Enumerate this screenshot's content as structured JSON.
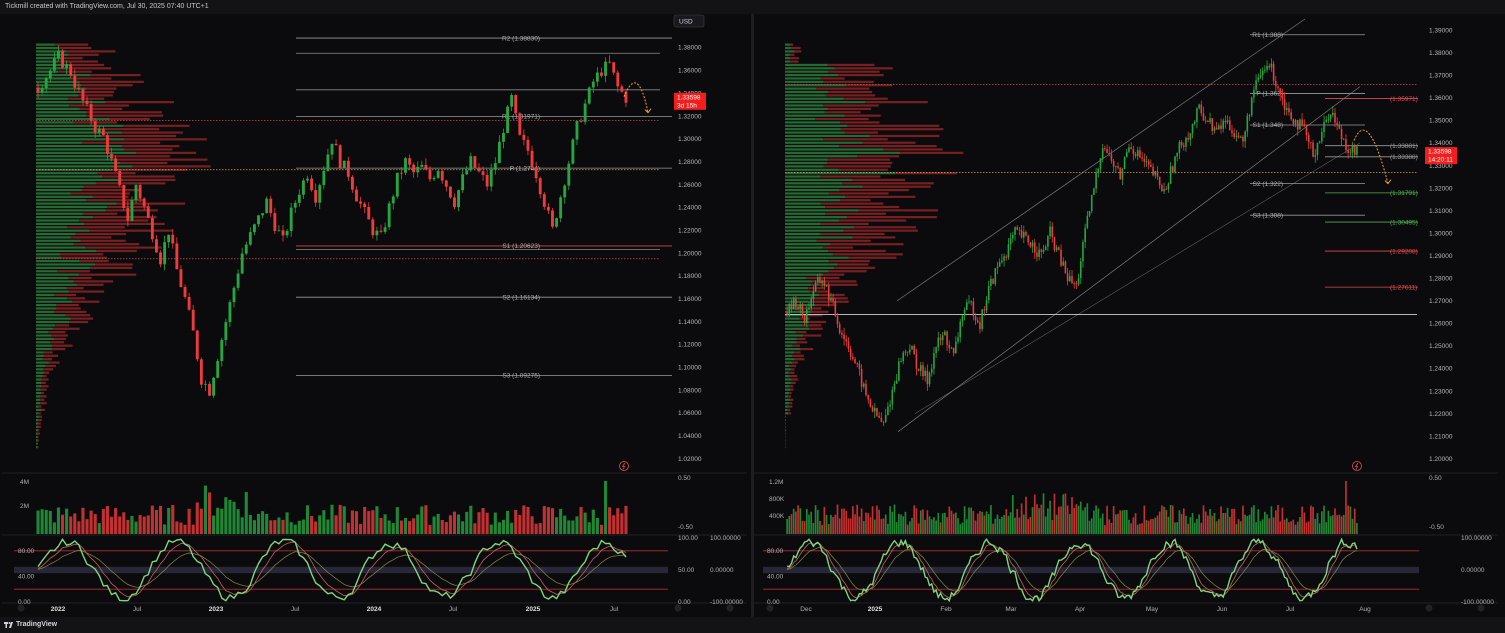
{
  "header": {
    "title": "Tickmill created with TradingView.com, Jul 30, 2025 07:40 UTC+1"
  },
  "footer": {
    "brand": "TradingView"
  },
  "colors": {
    "up": "#26a641",
    "down": "#ef3b3b",
    "price_badge": "#f21d1d",
    "pivot_line": "#9a9a9a",
    "volume_profile_up": "#2a7a3a",
    "volume_profile_down": "#8a2424",
    "poc_line": "#d4a24a",
    "resistance_dotted": "#e04a4a",
    "forecast_arrow": "#f0a030"
  },
  "chart_data": [
    {
      "type": "candlestick",
      "panel": "left",
      "currency_label": "USD",
      "timeframe_note": "weekly",
      "x_ticks": [
        "2022",
        "Jul",
        "2023",
        "Jul",
        "2024",
        "Jul",
        "2025",
        "Jul"
      ],
      "ylim": [
        1.01,
        1.405
      ],
      "y_ticks": [
        "1.40000",
        "1.38000",
        "1.36000",
        "1.34000",
        "1.32000",
        "1.30000",
        "1.28000",
        "1.26000",
        "1.24000",
        "1.22000",
        "1.20000",
        "1.18000",
        "1.16000",
        "1.14000",
        "1.12000",
        "1.10000",
        "1.08000",
        "1.06000",
        "1.04000",
        "1.02000"
      ],
      "price_badge": {
        "price": "1.33598",
        "countdown": "3d 15h",
        "value": 1.33598
      },
      "pivots": [
        {
          "label": "R2 (1.38830)",
          "value": 1.3883
        },
        {
          "label": "R1 (1.31971)",
          "value": 1.31971
        },
        {
          "label": "P (1.2744)",
          "value": 1.2744
        },
        {
          "label": "S1 (1.20623)",
          "value": 1.20623
        },
        {
          "label": "S2 (1.16134)",
          "value": 1.16134
        },
        {
          "label": "S3 (1.09275)",
          "value": 1.09275
        }
      ],
      "extra_levels": [
        1.375,
        1.343,
        1.203
      ],
      "dotted_levels": [
        1.316,
        1.273,
        1.195
      ],
      "price_path": [
        [
          0,
          1.345
        ],
        [
          3,
          1.36
        ],
        [
          5,
          1.372
        ],
        [
          8,
          1.358
        ],
        [
          10,
          1.34
        ],
        [
          12,
          1.325
        ],
        [
          14,
          1.31
        ],
        [
          16,
          1.302
        ],
        [
          18,
          1.28
        ],
        [
          20,
          1.255
        ],
        [
          22,
          1.23
        ],
        [
          24,
          1.26
        ],
        [
          26,
          1.24
        ],
        [
          28,
          1.218
        ],
        [
          30,
          1.195
        ],
        [
          32,
          1.22
        ],
        [
          34,
          1.185
        ],
        [
          36,
          1.16
        ],
        [
          38,
          1.13
        ],
        [
          40,
          1.09
        ],
        [
          42,
          1.08
        ],
        [
          44,
          1.11
        ],
        [
          46,
          1.14
        ],
        [
          48,
          1.17
        ],
        [
          50,
          1.2
        ],
        [
          52,
          1.215
        ],
        [
          54,
          1.23
        ],
        [
          56,
          1.245
        ],
        [
          58,
          1.225
        ],
        [
          60,
          1.21
        ],
        [
          62,
          1.235
        ],
        [
          64,
          1.255
        ],
        [
          66,
          1.27
        ],
        [
          68,
          1.25
        ],
        [
          70,
          1.275
        ],
        [
          72,
          1.3
        ],
        [
          74,
          1.28
        ],
        [
          76,
          1.27
        ],
        [
          78,
          1.25
        ],
        [
          80,
          1.235
        ],
        [
          82,
          1.22
        ],
        [
          84,
          1.213
        ],
        [
          86,
          1.24
        ],
        [
          88,
          1.265
        ],
        [
          90,
          1.28
        ],
        [
          92,
          1.27
        ],
        [
          94,
          1.275
        ],
        [
          96,
          1.265
        ],
        [
          98,
          1.275
        ],
        [
          100,
          1.26
        ],
        [
          102,
          1.245
        ],
        [
          104,
          1.265
        ],
        [
          106,
          1.28
        ],
        [
          108,
          1.27
        ],
        [
          110,
          1.26
        ],
        [
          112,
          1.28
        ],
        [
          114,
          1.31
        ],
        [
          116,
          1.335
        ],
        [
          118,
          1.3
        ],
        [
          120,
          1.29
        ],
        [
          122,
          1.27
        ],
        [
          124,
          1.245
        ],
        [
          126,
          1.22
        ],
        [
          128,
          1.25
        ],
        [
          130,
          1.28
        ],
        [
          132,
          1.31
        ],
        [
          134,
          1.33
        ],
        [
          136,
          1.35
        ],
        [
          138,
          1.36
        ],
        [
          140,
          1.365
        ],
        [
          142,
          1.345
        ],
        [
          144,
          1.336
        ]
      ],
      "volume": {
        "ticks": [
          "4M",
          "2M"
        ],
        "right_ticks": [
          "0.50",
          "-0.50"
        ]
      },
      "oscillator": {
        "ticks": [
          "80.00",
          "40.00",
          "0.00"
        ],
        "right_ticks": [
          "100.00",
          "50.00",
          "0.00"
        ],
        "far_right_ticks": [
          "100.00000",
          "0.00000",
          "-100.00000"
        ]
      }
    },
    {
      "type": "candlestick",
      "panel": "right",
      "timeframe_note": "daily",
      "x_ticks": [
        "Dec",
        "2025",
        "Feb",
        "Mar",
        "Apr",
        "May",
        "Jun",
        "Jul",
        "Aug"
      ],
      "ylim": [
        1.195,
        1.395
      ],
      "y_ticks": [
        "1.39000",
        "1.38000",
        "1.37000",
        "1.36000",
        "1.35000",
        "1.34000",
        "1.33000",
        "1.32000",
        "1.31000",
        "1.30000",
        "1.29000",
        "1.28000",
        "1.27000",
        "1.26000",
        "1.25000",
        "1.24000",
        "1.23000",
        "1.22000",
        "1.21000",
        "1.20000"
      ],
      "price_badge": {
        "price": "1.33598",
        "countdown": "14:20:11",
        "value": 1.33598
      },
      "pivots": [
        {
          "label": "R1 (1.388)",
          "value": 1.388
        },
        {
          "label": "P (1.362)",
          "value": 1.362
        },
        {
          "label": "S1 (1.348)",
          "value": 1.348
        },
        {
          "label": "S2 (1.322)",
          "value": 1.322
        },
        {
          "label": "S3 (1.308)",
          "value": 1.308
        }
      ],
      "levels": [
        {
          "label": "(1.35971)",
          "value": 1.35971,
          "color": "#e04a4a"
        },
        {
          "label": "(1.33881)",
          "value": 1.33881,
          "color": "#9a9a9a"
        },
        {
          "label": "(1.33388)",
          "value": 1.33388,
          "color": "#9a9a9a"
        },
        {
          "label": "(1.31791)",
          "value": 1.31791,
          "color": "#4caf50"
        },
        {
          "label": "(1.30495)",
          "value": 1.30495,
          "color": "#4caf50"
        },
        {
          "label": "(1.29208)",
          "value": 1.29208,
          "color": "#e04a4a"
        },
        {
          "label": "(1.27611)",
          "value": 1.27611,
          "color": "#e04a4a"
        }
      ],
      "dotted_levels": [
        1.366,
        1.327
      ],
      "solid_level": 1.264,
      "price_path": [
        [
          0,
          1.265
        ],
        [
          4,
          1.27
        ],
        [
          8,
          1.262
        ],
        [
          12,
          1.275
        ],
        [
          16,
          1.28
        ],
        [
          20,
          1.27
        ],
        [
          24,
          1.258
        ],
        [
          28,
          1.25
        ],
        [
          32,
          1.24
        ],
        [
          36,
          1.228
        ],
        [
          40,
          1.22
        ],
        [
          44,
          1.215
        ],
        [
          48,
          1.23
        ],
        [
          52,
          1.245
        ],
        [
          56,
          1.25
        ],
        [
          60,
          1.24
        ],
        [
          64,
          1.235
        ],
        [
          68,
          1.25
        ],
        [
          72,
          1.255
        ],
        [
          76,
          1.245
        ],
        [
          80,
          1.265
        ],
        [
          84,
          1.268
        ],
        [
          88,
          1.26
        ],
        [
          92,
          1.275
        ],
        [
          96,
          1.285
        ],
        [
          100,
          1.292
        ],
        [
          104,
          1.3
        ],
        [
          108,
          1.298
        ],
        [
          112,
          1.295
        ],
        [
          116,
          1.29
        ],
        [
          120,
          1.3
        ],
        [
          124,
          1.29
        ],
        [
          128,
          1.28
        ],
        [
          132,
          1.276
        ],
        [
          136,
          1.3
        ],
        [
          140,
          1.32
        ],
        [
          144,
          1.34
        ],
        [
          148,
          1.332
        ],
        [
          152,
          1.325
        ],
        [
          156,
          1.34
        ],
        [
          160,
          1.335
        ],
        [
          164,
          1.33
        ],
        [
          168,
          1.325
        ],
        [
          172,
          1.318
        ],
        [
          176,
          1.33
        ],
        [
          180,
          1.34
        ],
        [
          184,
          1.345
        ],
        [
          188,
          1.355
        ],
        [
          192,
          1.35
        ],
        [
          196,
          1.345
        ],
        [
          200,
          1.35
        ],
        [
          204,
          1.345
        ],
        [
          208,
          1.34
        ],
        [
          212,
          1.36
        ],
        [
          216,
          1.37
        ],
        [
          220,
          1.375
        ],
        [
          224,
          1.365
        ],
        [
          228,
          1.355
        ],
        [
          232,
          1.35
        ],
        [
          236,
          1.345
        ],
        [
          240,
          1.335
        ],
        [
          244,
          1.345
        ],
        [
          248,
          1.355
        ],
        [
          252,
          1.345
        ],
        [
          256,
          1.338
        ],
        [
          260,
          1.336
        ]
      ],
      "volume": {
        "ticks": [
          "1.2M",
          "800K",
          "400K"
        ],
        "right_ticks": [
          "0.50",
          "-0.50"
        ]
      },
      "oscillator": {
        "ticks": [
          "80.00",
          "40.00",
          "0.00"
        ],
        "far_right_ticks": [
          "100.00000",
          "0.00000",
          "-100.00000"
        ]
      }
    }
  ]
}
